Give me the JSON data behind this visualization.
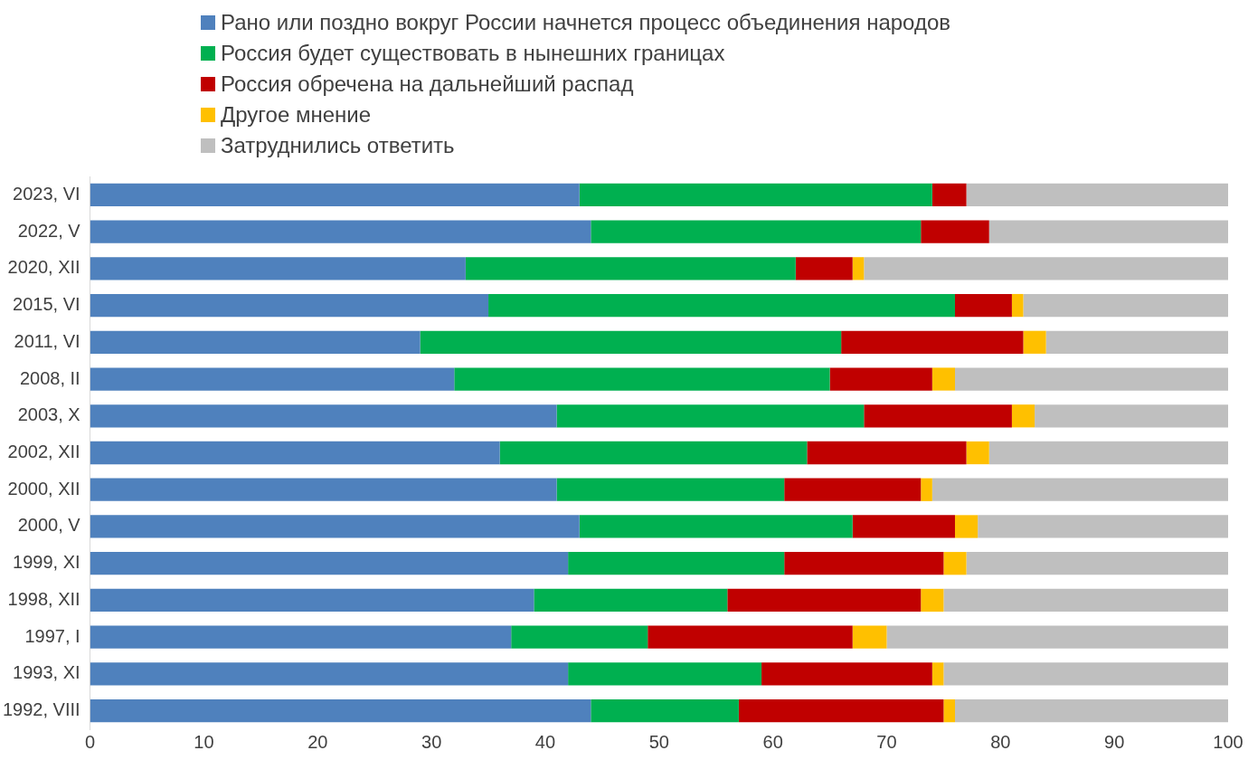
{
  "chart_data": {
    "type": "bar",
    "orientation": "horizontal",
    "stacked": true,
    "grid": false,
    "legend": "top",
    "categories": [
      "2023, VI",
      "2022, V",
      "2020, XII",
      "2015, VI",
      "2011, VI",
      "2008, II",
      "2003, X",
      "2002, XII",
      "2000, XII",
      "2000, V",
      "1999, XI",
      "1998, XII",
      "1997, I",
      "1993, XI",
      "1992, VIII"
    ],
    "xlim": [
      0,
      100
    ],
    "xticks": [
      0,
      10,
      20,
      30,
      40,
      50,
      60,
      70,
      80,
      90,
      100
    ],
    "series": [
      {
        "name": "Рано или поздно вокруг России начнется процесс объединения народов",
        "color": "#4f81bd",
        "values": [
          43,
          44,
          33,
          35,
          29,
          32,
          41,
          36,
          41,
          43,
          42,
          39,
          37,
          42,
          44
        ]
      },
      {
        "name": "Россия будет существовать в нынешних границах",
        "color": "#00b050",
        "values": [
          31,
          29,
          29,
          41,
          37,
          33,
          27,
          27,
          20,
          24,
          19,
          17,
          12,
          17,
          13
        ]
      },
      {
        "name": "Россия обречена на дальнейший распад",
        "color": "#c00000",
        "values": [
          3,
          6,
          5,
          5,
          16,
          9,
          13,
          14,
          12,
          9,
          14,
          17,
          18,
          15,
          18
        ]
      },
      {
        "name": "Другое мнение",
        "color": "#ffc000",
        "values": [
          0,
          0,
          1,
          1,
          2,
          2,
          2,
          2,
          1,
          2,
          2,
          2,
          3,
          1,
          1
        ]
      },
      {
        "name": "Затруднились ответить",
        "color": "#bfbfbf",
        "values": [
          23,
          21,
          32,
          18,
          16,
          24,
          17,
          21,
          26,
          22,
          23,
          25,
          30,
          25,
          24
        ]
      }
    ]
  }
}
